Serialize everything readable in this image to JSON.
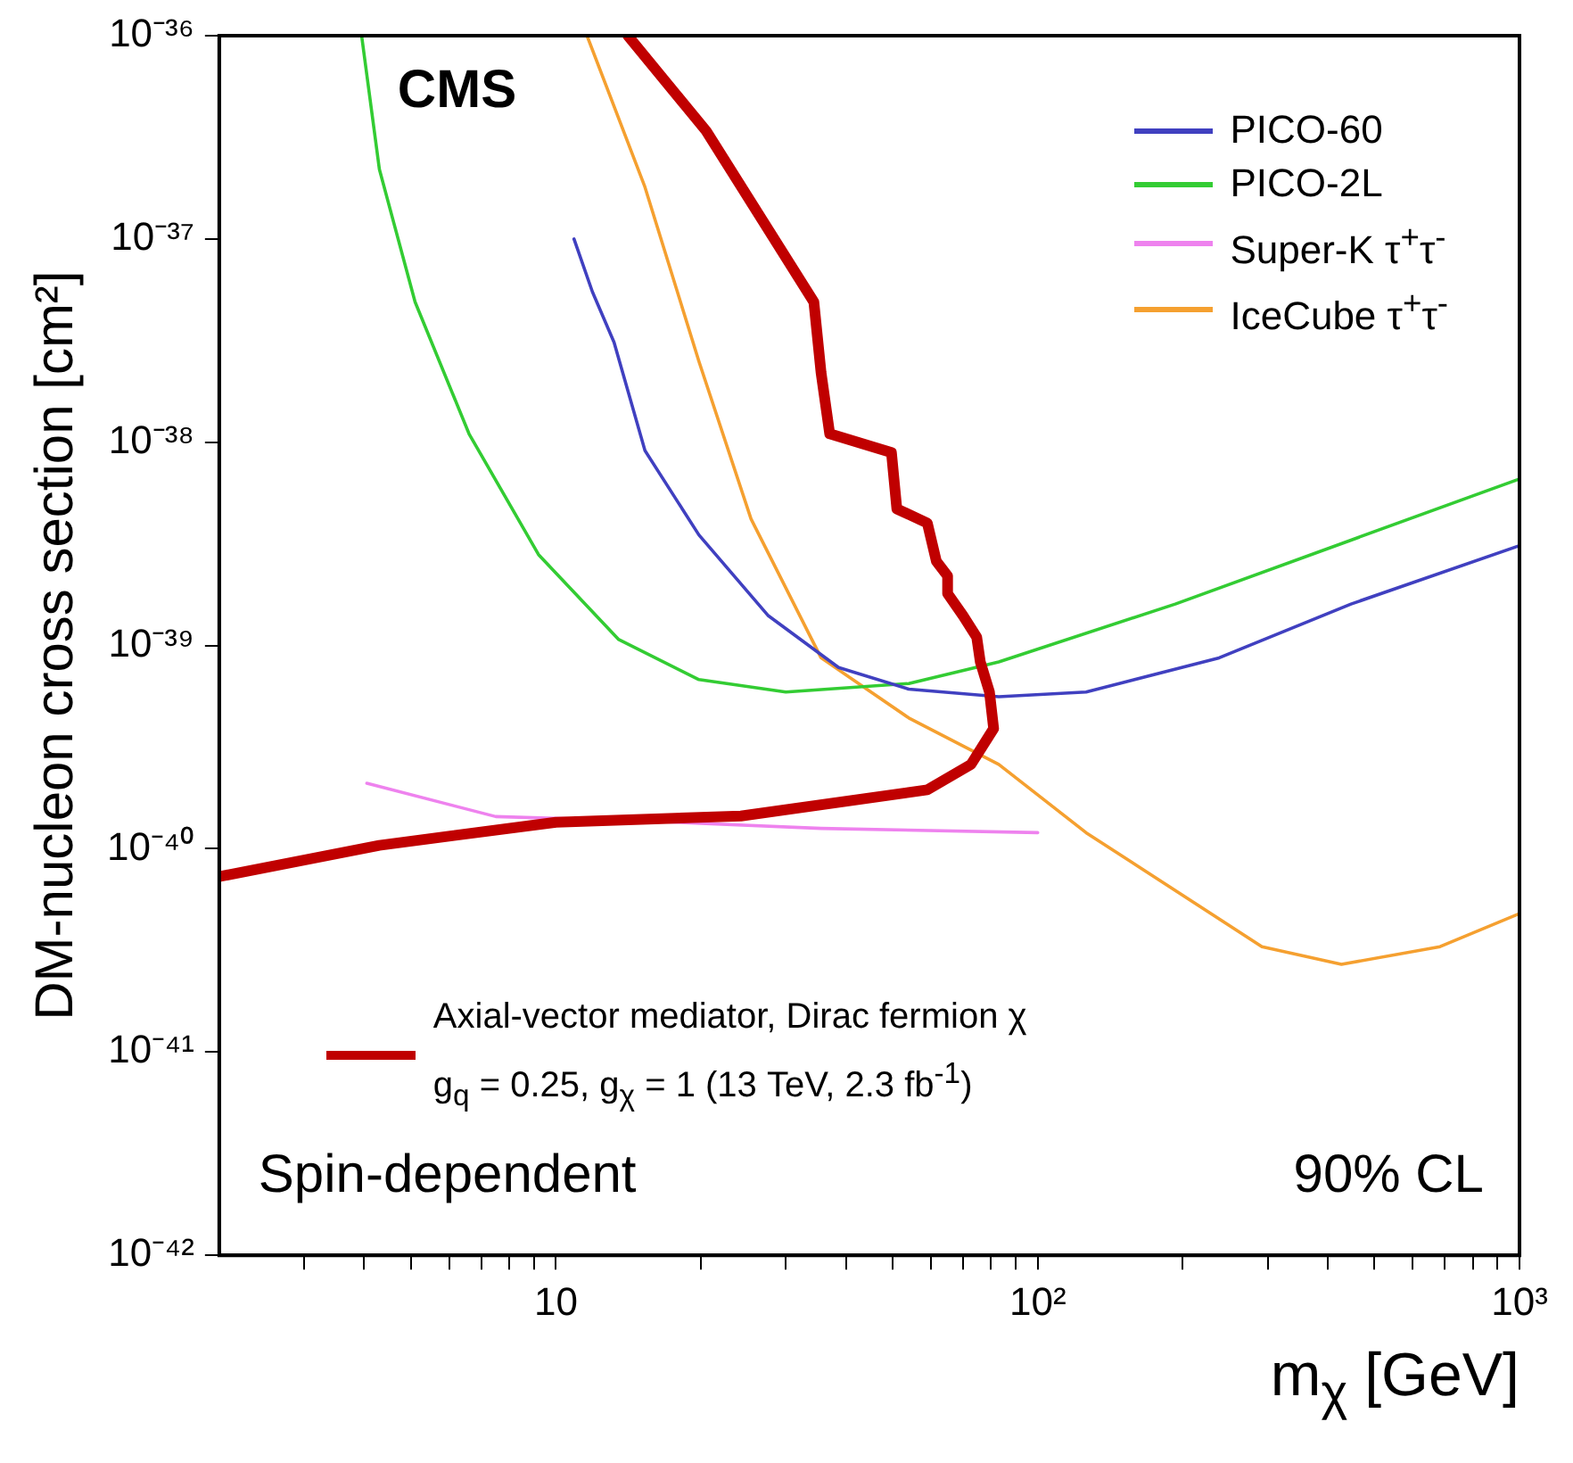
{
  "chart_data": {
    "type": "line",
    "xlabel": "m$_{χ}$ [GeV]",
    "ylabel": "DM-nucleon cross section [cm²]",
    "log": "xy",
    "grid": false,
    "legend": "top right",
    "xlim": [
      2,
      1000
    ],
    "ylim": [
      1e-42,
      1e-36
    ],
    "xticks": [
      {
        "value": 3,
        "label": null
      },
      {
        "value": 4,
        "label": null
      },
      {
        "value": 5,
        "label": null
      },
      {
        "value": 6,
        "label": null
      },
      {
        "value": 7,
        "label": null
      },
      {
        "value": 8,
        "label": null
      },
      {
        "value": 9,
        "label": null
      },
      {
        "value": 10,
        "label": "10"
      },
      {
        "value": 20,
        "label": null
      },
      {
        "value": 30,
        "label": null
      },
      {
        "value": 40,
        "label": null
      },
      {
        "value": 50,
        "label": null
      },
      {
        "value": 60,
        "label": null
      },
      {
        "value": 70,
        "label": null
      },
      {
        "value": 80,
        "label": null
      },
      {
        "value": 90,
        "label": null
      },
      {
        "value": 100,
        "label": "10²"
      },
      {
        "value": 200,
        "label": null
      },
      {
        "value": 300,
        "label": null
      },
      {
        "value": 400,
        "label": null
      },
      {
        "value": 500,
        "label": null
      },
      {
        "value": 600,
        "label": null
      },
      {
        "value": 700,
        "label": null
      },
      {
        "value": 800,
        "label": null
      },
      {
        "value": 900,
        "label": null
      },
      {
        "value": 1000,
        "label": "10³"
      }
    ],
    "yticks": [
      {
        "value": 1e-42,
        "label": "10⁻⁴²"
      },
      {
        "value": 1e-41,
        "label": "10⁻⁴¹"
      },
      {
        "value": 1e-40,
        "label": "10⁻⁴⁰"
      },
      {
        "value": 1e-39,
        "label": "10⁻³⁹"
      },
      {
        "value": 1e-38,
        "label": "10⁻³⁸"
      },
      {
        "value": 1e-37,
        "label": "10⁻³⁷"
      },
      {
        "value": 1e-36,
        "label": "10⁻³⁶"
      }
    ],
    "annotations": [
      "CMS",
      "Spin-dependent",
      "90% CL"
    ],
    "series": [
      {
        "name": "Axial-vector mediator, Dirac fermion χ\ng$_{q}$ = 0.25, g$_{χ}$ = 1 (13 TeV, 2.3 fb$^{-1}$)",
        "color": "#c00000",
        "x": [
          2,
          4.3,
          10,
          24.2,
          59,
          72.7,
          81,
          79.4,
          76,
          74.7,
          70,
          65,
          65,
          61.6,
          59,
          51,
          49.7,
          37,
          35.5,
          34.3,
          20.5,
          14.1
        ],
        "values": [
          7.3e-41,
          1.04e-40,
          1.35e-40,
          1.45e-40,
          1.95e-40,
          2.6e-40,
          3.9e-40,
          5.9e-40,
          8.3e-40,
          1.1e-39,
          1.4e-39,
          1.8e-39,
          2.2e-39,
          2.6e-39,
          4e-39,
          4.7e-39,
          8.9e-39,
          1.1e-38,
          2.2e-38,
          4.9e-38,
          3.4e-37,
          1e-36
        ]
      },
      {
        "name": "PICO-60",
        "color": "#4040c0",
        "x": [
          10.9,
          11.9,
          13.2,
          15.3,
          19.8,
          27.6,
          38.6,
          54,
          83,
          126,
          238,
          447,
          1000
        ],
        "values": [
          1e-37,
          5.5e-38,
          3.1e-38,
          9.1e-39,
          3.5e-39,
          1.4e-39,
          7.8e-40,
          6.1e-40,
          5.6e-40,
          5.9e-40,
          8.7e-40,
          1.6e-39,
          3.1e-39
        ]
      },
      {
        "name": "PICO-2L",
        "color": "#33cc33",
        "x": [
          3.95,
          4.3,
          5.1,
          6.6,
          9.2,
          13.5,
          19.8,
          30,
          54,
          83,
          193,
          447,
          1000
        ],
        "values": [
          1e-36,
          2.2e-37,
          4.9e-38,
          1.1e-38,
          2.8e-39,
          1.07e-39,
          6.8e-40,
          5.9e-40,
          6.5e-40,
          8.3e-40,
          1.6e-39,
          3.3e-39,
          6.6e-39
        ]
      },
      {
        "name": "Super-K τ$^{+}$τ$^{-}$",
        "color": "#ee82ee",
        "x": [
          4.05,
          7.5,
          15.3,
          35.5,
          100
        ],
        "values": [
          2.1e-40,
          1.44e-40,
          1.37e-40,
          1.26e-40,
          1.2e-40
        ]
      },
      {
        "name": "IceCube τ$^{+}$τ$^{-}$",
        "color": "#f5a030",
        "x": [
          11.6,
          15.3,
          19.8,
          25.4,
          35.5,
          54,
          83,
          126,
          292,
          427,
          684,
          1000
        ],
        "values": [
          1e-36,
          1.8e-37,
          2.5e-38,
          4.2e-39,
          8.7e-40,
          4.4e-40,
          2.6e-40,
          1.2e-40,
          3.3e-41,
          2.7e-41,
          3.3e-41,
          4.8e-41
        ]
      }
    ]
  }
}
